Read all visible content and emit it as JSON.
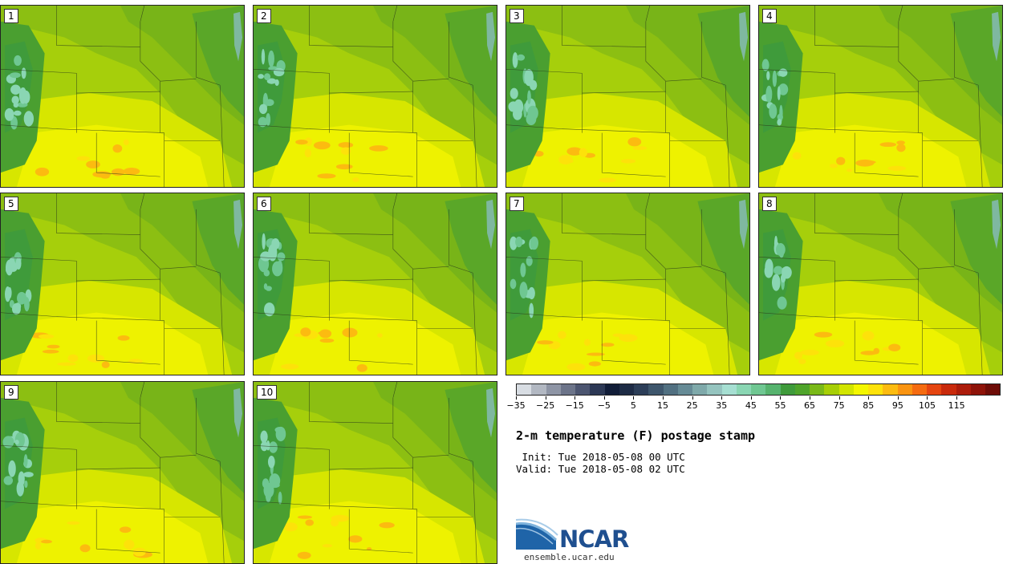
{
  "stamps": [
    {
      "label": "1"
    },
    {
      "label": "2"
    },
    {
      "label": "3"
    },
    {
      "label": "4"
    },
    {
      "label": "5"
    },
    {
      "label": "6"
    },
    {
      "label": "7"
    },
    {
      "label": "8"
    },
    {
      "label": "9"
    },
    {
      "label": "10"
    }
  ],
  "colorbar": {
    "colors": [
      "#d8dde3",
      "#b2b8c2",
      "#8e95a5",
      "#6c7489",
      "#4c5570",
      "#2c3855",
      "#111d38",
      "#1d2b45",
      "#2c3e58",
      "#3e566c",
      "#517081",
      "#668b96",
      "#7fa9aa",
      "#95c4bf",
      "#a6dfd2",
      "#8ad6b3",
      "#6fc792",
      "#56b36e",
      "#3f9b3b",
      "#4fa42b",
      "#7ab918",
      "#a7cf06",
      "#d2e500",
      "#f4f700",
      "#fde20a",
      "#fcbb10",
      "#fa9411",
      "#f56b10",
      "#e54510",
      "#c92a0c",
      "#ac1c0b",
      "#8e1309",
      "#6e0c07"
    ],
    "tick_labels": [
      "−35",
      "−25",
      "−15",
      "−5",
      "5",
      "15",
      "25",
      "35",
      "45",
      "55",
      "65",
      "75",
      "85",
      "95",
      "105",
      "115"
    ]
  },
  "title": "2-m temperature (F) postage stamp",
  "init": " Init: Tue 2018-05-08 00 UTC",
  "valid": "Valid: Tue 2018-05-08 02 UTC",
  "logo": {
    "text": "NCAR",
    "url": "ensemble.ucar.edu"
  }
}
